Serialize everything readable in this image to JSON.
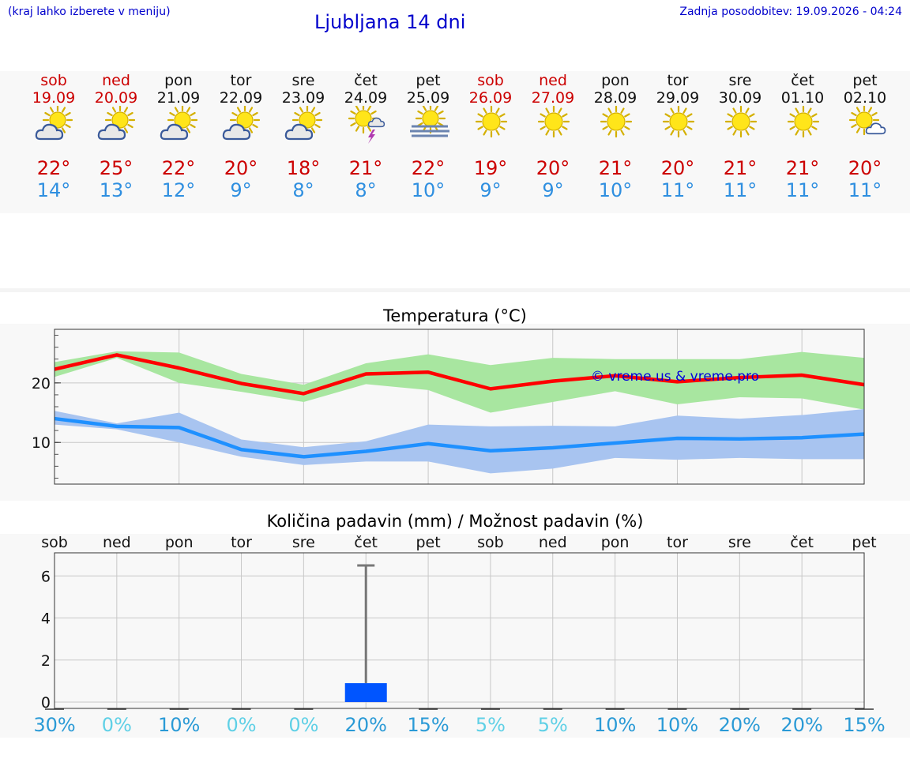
{
  "header": {
    "menu_hint": "(kraj lahko izberete v meniju)",
    "title": "Ljubljana 14 dni",
    "updated": "Zadnja posodobitev: 19.09.2026 - 04:24"
  },
  "colors": {
    "link": "#0000cc",
    "weekend": "#cc0000",
    "max_temp": "#cc0000",
    "min_temp": "#2f8fe0",
    "max_line": "#ff0000",
    "min_line": "#1e90ff",
    "max_band": "#a8e6a0",
    "min_band": "#a8c4f0",
    "rain_bar": "#0055ff",
    "rain_prob_line": "#777777"
  },
  "days": [
    {
      "name": "sob",
      "date": "19.09",
      "weekend": true,
      "icon": "sun-cloud-icon",
      "max": "22°",
      "min": "14°"
    },
    {
      "name": "ned",
      "date": "20.09",
      "weekend": true,
      "icon": "sun-cloud-icon",
      "max": "25°",
      "min": "13°"
    },
    {
      "name": "pon",
      "date": "21.09",
      "weekend": false,
      "icon": "sun-cloud-icon",
      "max": "22°",
      "min": "12°"
    },
    {
      "name": "tor",
      "date": "22.09",
      "weekend": false,
      "icon": "sun-cloud-icon",
      "max": "20°",
      "min": "9°"
    },
    {
      "name": "sre",
      "date": "23.09",
      "weekend": false,
      "icon": "sun-cloud-icon",
      "max": "18°",
      "min": "8°"
    },
    {
      "name": "čet",
      "date": "24.09",
      "weekend": false,
      "icon": "sun-thunder-icon",
      "max": "21°",
      "min": "8°"
    },
    {
      "name": "pet",
      "date": "25.09",
      "weekend": false,
      "icon": "sun-fog-icon",
      "max": "22°",
      "min": "10°"
    },
    {
      "name": "sob",
      "date": "26.09",
      "weekend": true,
      "icon": "sun-icon",
      "max": "19°",
      "min": "9°"
    },
    {
      "name": "ned",
      "date": "27.09",
      "weekend": true,
      "icon": "sun-icon",
      "max": "20°",
      "min": "9°"
    },
    {
      "name": "pon",
      "date": "28.09",
      "weekend": false,
      "icon": "sun-icon",
      "max": "21°",
      "min": "10°"
    },
    {
      "name": "tor",
      "date": "29.09",
      "weekend": false,
      "icon": "sun-icon",
      "max": "20°",
      "min": "11°"
    },
    {
      "name": "sre",
      "date": "30.09",
      "weekend": false,
      "icon": "sun-icon",
      "max": "21°",
      "min": "11°"
    },
    {
      "name": "čet",
      "date": "01.10",
      "weekend": false,
      "icon": "sun-icon",
      "max": "21°",
      "min": "11°"
    },
    {
      "name": "pet",
      "date": "02.10",
      "weekend": false,
      "icon": "sun-small-cloud-icon",
      "max": "20°",
      "min": "11°"
    }
  ],
  "watermark": "© vreme.us & vreme.pro",
  "chart_data": [
    {
      "type": "line",
      "title": "Temperatura (°C)",
      "categories": [
        "19.09",
        "20.09",
        "21.09",
        "22.09",
        "23.09",
        "24.09",
        "25.09",
        "26.09",
        "27.09",
        "28.09",
        "29.09",
        "30.09",
        "01.10",
        "02.10"
      ],
      "ylim": [
        3,
        29
      ],
      "yticks": [
        10,
        20
      ],
      "grid": true,
      "series": [
        {
          "values": [
            22.3,
            24.7,
            22.5,
            19.9,
            18.2,
            21.5,
            21.8,
            19.0,
            20.3,
            21.2,
            20.2,
            20.9,
            21.3,
            19.7
          ]
        },
        {
          "values": [
            14.0,
            12.7,
            12.5,
            8.8,
            7.6,
            8.5,
            9.8,
            8.6,
            9.1,
            9.9,
            10.7,
            10.6,
            10.8,
            11.4
          ]
        }
      ],
      "bands": [
        {
          "upper": [
            23.5,
            25.3,
            25.1,
            21.5,
            19.7,
            23.3,
            24.8,
            23.0,
            24.2,
            24.0,
            24.0,
            24.0,
            25.2,
            24.2
          ],
          "lower": [
            21.0,
            24.2,
            20.0,
            18.5,
            16.8,
            19.8,
            18.8,
            15.0,
            16.8,
            18.6,
            16.4,
            17.6,
            17.4,
            15.5
          ]
        },
        {
          "upper": [
            15.3,
            13.2,
            15.0,
            10.5,
            9.2,
            10.2,
            13.0,
            12.7,
            12.8,
            12.7,
            14.5,
            14.0,
            14.6,
            15.6
          ],
          "lower": [
            13.0,
            12.2,
            10.0,
            7.6,
            6.2,
            6.8,
            6.8,
            4.8,
            5.6,
            7.4,
            7.1,
            7.4,
            7.2,
            7.2
          ]
        }
      ]
    },
    {
      "type": "bar",
      "title": "Količina padavin (mm) / Možnost padavin (%)",
      "categories": [
        "sob",
        "ned",
        "pon",
        "tor",
        "sre",
        "čet",
        "pet",
        "sob",
        "ned",
        "pon",
        "tor",
        "sre",
        "čet",
        "pet"
      ],
      "values": [
        0,
        0,
        0,
        0,
        0,
        0.9,
        0,
        0,
        0,
        0,
        0,
        0,
        0,
        0
      ],
      "max_values": [
        0,
        0,
        0,
        0,
        0,
        6.5,
        0,
        0,
        0,
        0,
        0,
        0,
        0,
        0
      ],
      "ylim": [
        -0.3,
        7.1
      ],
      "yticks": [
        0,
        2,
        4,
        6
      ],
      "probabilities": [
        "30%",
        "0%",
        "10%",
        "0%",
        "0%",
        "20%",
        "15%",
        "5%",
        "5%",
        "10%",
        "10%",
        "20%",
        "20%",
        "15%"
      ],
      "grid": true
    }
  ]
}
